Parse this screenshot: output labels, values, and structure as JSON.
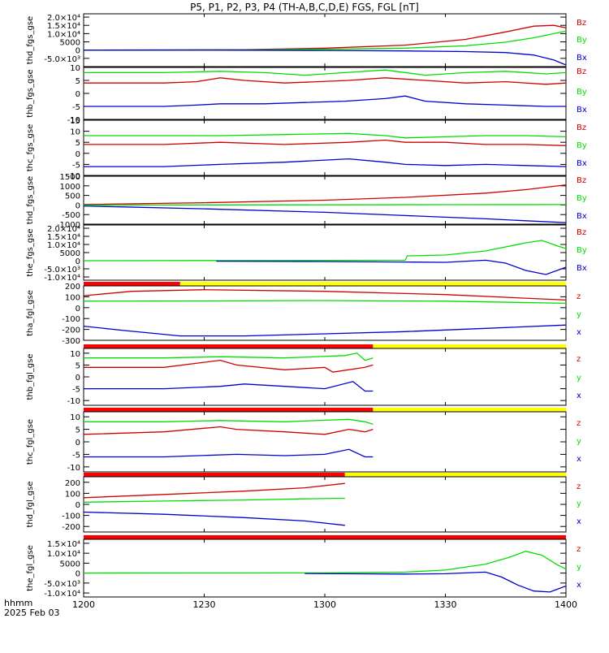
{
  "chart_data": {
    "type": "line",
    "title": "P5, P1, P2, P3, P4 (TH-A,B,C,D,E) FGS, FGL [nT]",
    "x_axis": {
      "label_top": "hhmm",
      "label_bottom": "2025 Feb 03",
      "ticks": [
        "1200",
        "1230",
        "1300",
        "1330",
        "1400"
      ],
      "range_minutes": [
        0,
        120
      ]
    },
    "colors": {
      "z": "#d00000",
      "y": "#00e000",
      "x": "#0000d0",
      "bar_red": "#ff0000",
      "bar_yellow": "#ffff00",
      "black": "#000000"
    },
    "panels": [
      {
        "ylabel": "thd_fgs_gse",
        "ylim": [
          -10000,
          22000
        ],
        "ticks": [
          "2.0×10⁴",
          "1.5×10⁴",
          "1.0×10⁴",
          "5000",
          "0",
          "-5.0×10³"
        ],
        "tick_values": [
          20000,
          15000,
          10000,
          5000,
          0,
          -5000
        ],
        "legend": [
          "Bz",
          "By",
          "Bx"
        ],
        "series": [
          {
            "name": "Bz",
            "color": "#d00000",
            "x": [
              0,
              40,
              60,
              80,
              95,
              105,
              112,
              117,
              120
            ],
            "values": [
              0,
              300,
              1200,
              3000,
              6500,
              11000,
              14500,
              15000,
              13500
            ]
          },
          {
            "name": "By",
            "color": "#00e000",
            "x": [
              0,
              40,
              60,
              80,
              95,
              105,
              112,
              117,
              120
            ],
            "values": [
              0,
              150,
              500,
              1200,
              2600,
              4800,
              7500,
              10000,
              11500
            ]
          },
          {
            "name": "Bx",
            "color": "#0000d0",
            "x": [
              0,
              40,
              60,
              80,
              95,
              105,
              112,
              117,
              120
            ],
            "values": [
              0,
              -50,
              -200,
              -500,
              -900,
              -1500,
              -3000,
              -6000,
              -9000
            ]
          }
        ]
      },
      {
        "ylabel": "thb_fgs_gse",
        "ylim": [
          -10,
          10
        ],
        "ticks": [
          "10",
          "5",
          "0",
          "-5",
          "-10"
        ],
        "tick_values": [
          10,
          5,
          0,
          -5,
          -10
        ],
        "legend": [
          "Bz",
          "By",
          "Bx"
        ],
        "series": [
          {
            "name": "Bz",
            "color": "#d00000",
            "x": [
              0,
              20,
              28,
              34,
              40,
              50,
              58,
              66,
              75,
              85,
              95,
              105,
              115,
              120
            ],
            "values": [
              4,
              4,
              4.5,
              6,
              5,
              4,
              4.5,
              5,
              6,
              5,
              4,
              4.5,
              3.5,
              4
            ]
          },
          {
            "name": "By",
            "color": "#00e000",
            "x": [
              0,
              20,
              34,
              45,
              55,
              65,
              75,
              85,
              95,
              105,
              115,
              120
            ],
            "values": [
              8,
              8,
              8.5,
              8,
              7,
              8,
              9,
              7,
              8,
              8.5,
              7.5,
              8
            ]
          },
          {
            "name": "Bx",
            "color": "#0000d0",
            "x": [
              0,
              20,
              28,
              34,
              45,
              55,
              65,
              75,
              80,
              85,
              95,
              105,
              115,
              120
            ],
            "values": [
              -5,
              -5,
              -4.5,
              -4,
              -4,
              -3.5,
              -3,
              -2,
              -1,
              -3,
              -4,
              -4.5,
              -5,
              -5
            ]
          }
        ]
      },
      {
        "ylabel": "thc_fgs_gse",
        "ylim": [
          -10,
          15
        ],
        "ticks": [
          "15",
          "10",
          "5",
          "0",
          "-5",
          "-10"
        ],
        "tick_values": [
          15,
          10,
          5,
          0,
          -5,
          -10
        ],
        "legend": [
          "Bz",
          "By",
          "Bx"
        ],
        "series": [
          {
            "name": "Bz",
            "color": "#d00000",
            "x": [
              0,
              20,
              34,
              50,
              66,
              75,
              80,
              90,
              100,
              110,
              120
            ],
            "values": [
              4,
              4,
              5,
              4,
              5,
              6,
              5,
              5,
              4,
              4,
              3.5
            ]
          },
          {
            "name": "By",
            "color": "#00e000",
            "x": [
              0,
              20,
              34,
              50,
              66,
              75,
              80,
              90,
              100,
              110,
              120
            ],
            "values": [
              8,
              8,
              8,
              8.5,
              9,
              8,
              7,
              7.5,
              8,
              8,
              7.5
            ]
          },
          {
            "name": "Bx",
            "color": "#0000d0",
            "x": [
              0,
              20,
              34,
              50,
              66,
              75,
              80,
              90,
              100,
              110,
              120
            ],
            "values": [
              -6,
              -6,
              -5,
              -4,
              -2.5,
              -4,
              -5,
              -5.5,
              -5,
              -5.5,
              -6
            ]
          }
        ]
      },
      {
        "ylabel": "thd_fgs_gse",
        "ylim": [
          -1000,
          1500
        ],
        "ticks": [
          "1500",
          "1000",
          "500",
          "0",
          "-500",
          "-1000"
        ],
        "tick_values": [
          1500,
          1000,
          500,
          0,
          -500,
          -1000
        ],
        "legend": [
          "Bz",
          "By",
          "Bx"
        ],
        "series": [
          {
            "name": "Bz",
            "color": "#d00000",
            "x": [
              0,
              30,
              60,
              80,
              100,
              110,
              120
            ],
            "values": [
              30,
              120,
              250,
              400,
              620,
              800,
              1050
            ]
          },
          {
            "name": "By",
            "color": "#00e000",
            "x": [
              0,
              30,
              60,
              90,
              120
            ],
            "values": [
              0,
              5,
              10,
              15,
              20
            ]
          },
          {
            "name": "Bx",
            "color": "#0000d0",
            "x": [
              0,
              30,
              60,
              80,
              100,
              110,
              120
            ],
            "values": [
              -50,
              -200,
              -380,
              -550,
              -720,
              -820,
              -920
            ]
          }
        ]
      },
      {
        "ylabel": "the_fgs_gse",
        "ylim": [
          -12000,
          22000
        ],
        "ticks": [
          "2.0×10⁴",
          "1.5×10⁴",
          "1.0×10⁴",
          "5000",
          "0",
          "-5.0×10³",
          "-1.0×10⁴"
        ],
        "tick_values": [
          20000,
          15000,
          10000,
          5000,
          0,
          -5000,
          -10000
        ],
        "legend": [
          "Bz",
          "By",
          "Bx"
        ],
        "series": [
          {
            "name": "By",
            "color": "#00e000",
            "x": [
              0,
              60,
              80,
              80.5,
              90,
              100,
              110,
              114,
              118,
              120
            ],
            "values": [
              0,
              200,
              300,
              3000,
              3500,
              6000,
              11000,
              12500,
              9000,
              7500
            ]
          },
          {
            "name": "Bx",
            "color": "#0000d0",
            "x": [
              33,
              60,
              80,
              90,
              100,
              105,
              110,
              115,
              120
            ],
            "values": [
              -300,
              -500,
              -800,
              -1000,
              300,
              -1500,
              -6000,
              -8500,
              -4000
            ]
          }
        ]
      },
      {
        "ylabel": "tha_fgl_gse",
        "ylim": [
          -300,
          200
        ],
        "ticks": [
          "200",
          "100",
          "0",
          "-100",
          "-200",
          "-300"
        ],
        "tick_values": [
          200,
          100,
          0,
          -100,
          -200,
          -300
        ],
        "legend": [
          "z",
          "y",
          "x"
        ],
        "status_bar": [
          {
            "from": 0,
            "to": 24,
            "color": "#ff0000"
          },
          {
            "from": 24,
            "to": 120,
            "color": "#ffff00"
          }
        ],
        "series": [
          {
            "name": "z",
            "color": "#d00000",
            "x": [
              0,
              12,
              30,
              60,
              90,
              120
            ],
            "values": [
              110,
              150,
              165,
              150,
              120,
              70
            ]
          },
          {
            "name": "y",
            "color": "#00e000",
            "x": [
              0,
              30,
              60,
              90,
              120
            ],
            "values": [
              60,
              62,
              65,
              60,
              40
            ]
          },
          {
            "name": "x",
            "color": "#0000d0",
            "x": [
              0,
              10,
              24,
              40,
              60,
              80,
              100,
              120
            ],
            "values": [
              -170,
              -210,
              -260,
              -260,
              -240,
              -220,
              -190,
              -160
            ]
          }
        ]
      },
      {
        "ylabel": "thb_fgl_gse",
        "ylim": [
          -12,
          12
        ],
        "ticks": [
          "10",
          "5",
          "0",
          "-5",
          "-10"
        ],
        "tick_values": [
          10,
          5,
          0,
          -5,
          -10
        ],
        "legend": [
          "z",
          "y",
          "x"
        ],
        "status_bar": [
          {
            "from": 0,
            "to": 72,
            "color": "#ff0000"
          },
          {
            "from": 72,
            "to": 120,
            "color": "#ffff00"
          }
        ],
        "series": [
          {
            "name": "z",
            "color": "#d00000",
            "x": [
              0,
              20,
              34,
              38,
              50,
              60,
              62,
              70,
              72
            ],
            "values": [
              4,
              4,
              7,
              5,
              3,
              4,
              2,
              4,
              5
            ]
          },
          {
            "name": "y",
            "color": "#00e000",
            "x": [
              0,
              20,
              34,
              50,
              65,
              68,
              70,
              72
            ],
            "values": [
              8,
              8,
              8.5,
              8,
              9,
              10,
              7,
              8
            ]
          },
          {
            "name": "x",
            "color": "#0000d0",
            "x": [
              0,
              20,
              34,
              40,
              50,
              60,
              67,
              70,
              72
            ],
            "values": [
              -5,
              -5,
              -4,
              -3,
              -4,
              -5,
              -2,
              -6,
              -6
            ]
          }
        ]
      },
      {
        "ylabel": "thc_fgl_gse",
        "ylim": [
          -12,
          12
        ],
        "ticks": [
          "10",
          "5",
          "0",
          "-5",
          "-10"
        ],
        "tick_values": [
          10,
          5,
          0,
          -5,
          -10
        ],
        "legend": [
          "z",
          "y",
          "x"
        ],
        "status_bar": [
          {
            "from": 0,
            "to": 72,
            "color": "#ff0000"
          },
          {
            "from": 72,
            "to": 120,
            "color": "#ffff00"
          }
        ],
        "series": [
          {
            "name": "z",
            "color": "#d00000",
            "x": [
              0,
              20,
              34,
              38,
              50,
              60,
              66,
              70,
              72
            ],
            "values": [
              3,
              4,
              6,
              5,
              4,
              3,
              5,
              4,
              5
            ]
          },
          {
            "name": "y",
            "color": "#00e000",
            "x": [
              0,
              20,
              34,
              50,
              66,
              70,
              72
            ],
            "values": [
              8,
              8,
              8.5,
              8,
              9,
              8,
              7
            ]
          },
          {
            "name": "x",
            "color": "#0000d0",
            "x": [
              0,
              20,
              38,
              50,
              60,
              66,
              70,
              72
            ],
            "values": [
              -6,
              -6,
              -5,
              -5.5,
              -5,
              -3,
              -6,
              -6
            ]
          }
        ]
      },
      {
        "ylabel": "thd_fgl_gse",
        "ylim": [
          -250,
          250
        ],
        "ticks": [
          "200",
          "100",
          "0",
          "-100",
          "-200"
        ],
        "tick_values": [
          200,
          100,
          0,
          -100,
          -200
        ],
        "legend": [
          "z",
          "y",
          "x"
        ],
        "status_bar": [
          {
            "from": 0,
            "to": 65,
            "color": "#ff0000"
          },
          {
            "from": 65,
            "to": 120,
            "color": "#ffff00"
          }
        ],
        "series": [
          {
            "name": "z",
            "color": "#d00000",
            "x": [
              0,
              20,
              40,
              55,
              65
            ],
            "values": [
              60,
              90,
              120,
              150,
              190
            ]
          },
          {
            "name": "y",
            "color": "#00e000",
            "x": [
              0,
              20,
              40,
              55,
              65
            ],
            "values": [
              20,
              30,
              40,
              50,
              55
            ]
          },
          {
            "name": "x",
            "color": "#0000d0",
            "x": [
              0,
              20,
              40,
              55,
              65
            ],
            "values": [
              -70,
              -90,
              -120,
              -150,
              -190
            ]
          }
        ]
      },
      {
        "ylabel": "the_fgl_gse",
        "ylim": [
          -12000,
          17000
        ],
        "ticks": [
          "1.5×10⁴",
          "1.0×10⁴",
          "5000",
          "0",
          "-5.0×10³",
          "-1.0×10⁴"
        ],
        "tick_values": [
          15000,
          10000,
          5000,
          0,
          -5000,
          -10000
        ],
        "legend": [
          "z",
          "y",
          "x"
        ],
        "status_bar": [
          {
            "from": 0,
            "to": 120,
            "color": "#ff0000"
          }
        ],
        "series": [
          {
            "name": "y",
            "color": "#00e000",
            "x": [
              0,
              60,
              80,
              90,
              100,
              106,
              110,
              114,
              118,
              120
            ],
            "values": [
              0,
              100,
              500,
              1500,
              4500,
              8000,
              11000,
              9000,
              4000,
              2000
            ]
          },
          {
            "name": "x",
            "color": "#0000d0",
            "x": [
              55,
              80,
              90,
              100,
              104,
              108,
              112,
              116,
              120
            ],
            "values": [
              -200,
              -500,
              -300,
              500,
              -2000,
              -6000,
              -9000,
              -9500,
              -6500
            ]
          }
        ]
      }
    ]
  }
}
